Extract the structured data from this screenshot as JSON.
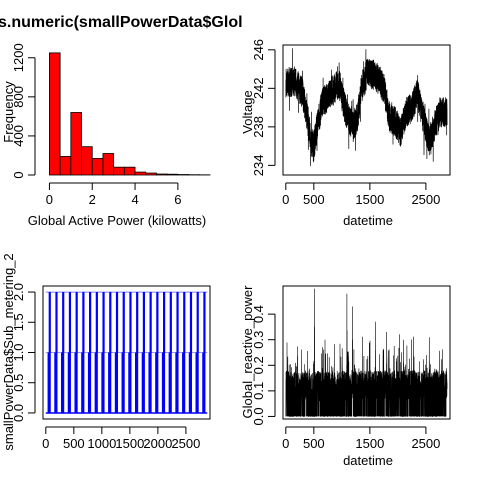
{
  "chart_data": [
    {
      "type": "bar",
      "title": "s.numeric(smallPowerData$Glol",
      "xlabel": "Global Active Power (kilowatts)",
      "ylabel": "Frequency",
      "bin_width": 0.5,
      "bins": [
        {
          "x0": 0.0,
          "x1": 0.5,
          "value": 1250
        },
        {
          "x0": 0.5,
          "x1": 1.0,
          "value": 190
        },
        {
          "x0": 1.0,
          "x1": 1.5,
          "value": 640
        },
        {
          "x0": 1.5,
          "x1": 2.0,
          "value": 290
        },
        {
          "x0": 2.0,
          "x1": 2.5,
          "value": 170
        },
        {
          "x0": 2.5,
          "x1": 3.0,
          "value": 220
        },
        {
          "x0": 3.0,
          "x1": 3.5,
          "value": 80
        },
        {
          "x0": 3.5,
          "x1": 4.0,
          "value": 80
        },
        {
          "x0": 4.0,
          "x1": 4.5,
          "value": 30
        },
        {
          "x0": 4.5,
          "x1": 5.0,
          "value": 20
        },
        {
          "x0": 5.0,
          "x1": 5.5,
          "value": 10
        },
        {
          "x0": 5.5,
          "x1": 6.0,
          "value": 8
        },
        {
          "x0": 6.0,
          "x1": 6.5,
          "value": 5
        },
        {
          "x0": 6.5,
          "x1": 7.0,
          "value": 3
        },
        {
          "x0": 7.0,
          "x1": 7.5,
          "value": 2
        }
      ],
      "xlim": [
        -0.3,
        7.5
      ],
      "ylim": [
        0,
        1300
      ],
      "xticks": [
        0,
        2,
        4,
        6
      ],
      "yticks": [
        0,
        400,
        800,
        1200
      ],
      "fill": "#ff0000"
    },
    {
      "type": "line",
      "xlabel": "datetime",
      "ylabel": "Voltage",
      "xlim": [
        -50,
        2930
      ],
      "ylim": [
        233,
        246.5
      ],
      "xticks": [
        0,
        500,
        1500,
        2500
      ],
      "xtick_labels": [
        "0",
        "500",
        "1500",
        "2500"
      ],
      "yticks": [
        234,
        238,
        242,
        246
      ],
      "n_points": 2880,
      "trend_knots": [
        [
          0,
          242.5
        ],
        [
          150,
          242.8
        ],
        [
          300,
          241.5
        ],
        [
          400,
          238.5
        ],
        [
          450,
          236.5
        ],
        [
          500,
          236
        ],
        [
          560,
          238
        ],
        [
          650,
          240.5
        ],
        [
          800,
          241.5
        ],
        [
          950,
          242.5
        ],
        [
          1050,
          240
        ],
        [
          1150,
          238.5
        ],
        [
          1200,
          238
        ],
        [
          1280,
          239
        ],
        [
          1350,
          242
        ],
        [
          1450,
          243.5
        ],
        [
          1550,
          243.5
        ],
        [
          1650,
          243
        ],
        [
          1750,
          242
        ],
        [
          1850,
          239
        ],
        [
          1950,
          238.5
        ],
        [
          2050,
          237.5
        ],
        [
          2150,
          239.5
        ],
        [
          2250,
          240
        ],
        [
          2350,
          241.5
        ],
        [
          2450,
          239
        ],
        [
          2550,
          236.5
        ],
        [
          2650,
          238
        ],
        [
          2750,
          239.5
        ],
        [
          2880,
          239.5
        ]
      ]
    },
    {
      "type": "line",
      "xlabel": "",
      "ylabel": "smallPowerData$Sub_metering_2",
      "xlim": [
        -50,
        2930
      ],
      "ylim": [
        -0.1,
        2.1
      ],
      "xticks": [
        0,
        500,
        1000,
        1500,
        2000,
        2500
      ],
      "xtick_labels": [
        "0",
        "500",
        "1000",
        "1500",
        "2000",
        "2500"
      ],
      "yticks": [
        0.0,
        0.5,
        1.0,
        1.5,
        2.0
      ],
      "ytick_labels": [
        "0.0",
        "0.5",
        "1.0",
        "1.5",
        "2.0"
      ],
      "spike_period": 120,
      "spike_values": [
        0,
        1,
        2
      ],
      "series_color": "#0000ff"
    },
    {
      "type": "line",
      "xlabel": "datetime",
      "ylabel": "Global_reactive_power",
      "xlim": [
        -50,
        2930
      ],
      "ylim": [
        -0.01,
        0.51
      ],
      "xticks": [
        0,
        500,
        1500,
        2500
      ],
      "xtick_labels": [
        "0",
        "500",
        "1500",
        "2500"
      ],
      "yticks": [
        0.0,
        0.1,
        0.2,
        0.3,
        0.4
      ],
      "ytick_labels": [
        "0.0",
        "0.1",
        "0.2",
        "0.3",
        "0.4"
      ],
      "peaks": [
        [
          510,
          0.5
        ],
        [
          1090,
          0.48
        ],
        [
          1190,
          0.43
        ],
        [
          1600,
          0.37
        ],
        [
          700,
          0.3
        ],
        [
          1800,
          0.33
        ],
        [
          2100,
          0.3
        ],
        [
          2560,
          0.31
        ]
      ]
    }
  ]
}
